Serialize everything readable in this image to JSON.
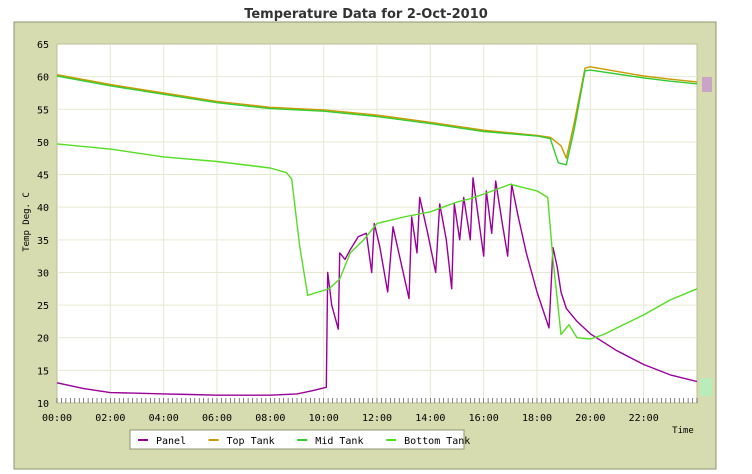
{
  "chart_data": {
    "type": "line",
    "title": "Temperature Data for 2-Oct-2010",
    "xlabel": "Time",
    "ylabel": "Temp Deg. C",
    "xlim": [
      0,
      24
    ],
    "ylim": [
      10,
      65
    ],
    "x_ticks": [
      {
        "v": 0,
        "label": "00:00"
      },
      {
        "v": 2,
        "label": "02:00"
      },
      {
        "v": 4,
        "label": "04:00"
      },
      {
        "v": 6,
        "label": "06:00"
      },
      {
        "v": 8,
        "label": "08:00"
      },
      {
        "v": 10,
        "label": "10:00"
      },
      {
        "v": 12,
        "label": "12:00"
      },
      {
        "v": 14,
        "label": "14:00"
      },
      {
        "v": 16,
        "label": "16:00"
      },
      {
        "v": 18,
        "label": "18:00"
      },
      {
        "v": 20,
        "label": "20:00"
      },
      {
        "v": 22,
        "label": "22:00"
      }
    ],
    "y_ticks": [
      10,
      15,
      20,
      25,
      30,
      35,
      40,
      45,
      50,
      55,
      60,
      65
    ],
    "grid": true,
    "legend_position": "bottom",
    "colors": {
      "page_bg": "#ffffff",
      "frame_bg": "#d6dcaf",
      "frame_border": "#8e9470",
      "plot_bg": "#ffffff",
      "grid": "#e6e9d2",
      "title": "#333333"
    },
    "series": [
      {
        "name": "Panel",
        "color": "#990099",
        "points": [
          [
            0,
            13.1
          ],
          [
            1,
            12.2
          ],
          [
            2,
            11.6
          ],
          [
            3,
            11.5
          ],
          [
            4,
            11.4
          ],
          [
            5,
            11.3
          ],
          [
            6,
            11.2
          ],
          [
            7,
            11.2
          ],
          [
            8,
            11.2
          ],
          [
            9,
            11.4
          ],
          [
            9.6,
            11.9
          ],
          [
            10.1,
            12.4
          ],
          [
            10.15,
            30
          ],
          [
            10.3,
            25
          ],
          [
            10.55,
            21.3
          ],
          [
            10.6,
            33
          ],
          [
            10.8,
            32
          ],
          [
            11,
            33.5
          ],
          [
            11.3,
            35.5
          ],
          [
            11.6,
            36
          ],
          [
            11.8,
            30
          ],
          [
            11.9,
            37.5
          ],
          [
            12.1,
            34
          ],
          [
            12.4,
            27
          ],
          [
            12.6,
            37
          ],
          [
            12.9,
            31.5
          ],
          [
            13.2,
            26
          ],
          [
            13.3,
            38.5
          ],
          [
            13.5,
            33
          ],
          [
            13.6,
            41.5
          ],
          [
            13.9,
            36
          ],
          [
            14.2,
            30
          ],
          [
            14.35,
            40.5
          ],
          [
            14.6,
            35
          ],
          [
            14.8,
            27.5
          ],
          [
            14.9,
            40.5
          ],
          [
            15.1,
            35
          ],
          [
            15.25,
            41.5
          ],
          [
            15.5,
            35
          ],
          [
            15.6,
            44.5
          ],
          [
            15.8,
            38.5
          ],
          [
            16,
            32.5
          ],
          [
            16.1,
            42.5
          ],
          [
            16.3,
            36
          ],
          [
            16.45,
            44
          ],
          [
            16.7,
            37.5
          ],
          [
            16.9,
            32.5
          ],
          [
            17.05,
            43.5
          ],
          [
            17.3,
            38.5
          ],
          [
            17.6,
            33
          ],
          [
            18,
            27
          ],
          [
            18.45,
            21.5
          ],
          [
            18.6,
            33.8
          ],
          [
            18.75,
            31
          ],
          [
            18.9,
            27
          ],
          [
            19.1,
            24.5
          ],
          [
            19.5,
            22.5
          ],
          [
            20,
            20.6
          ],
          [
            21,
            18
          ],
          [
            22,
            15.9
          ],
          [
            23,
            14.3
          ],
          [
            24,
            13.3
          ]
        ]
      },
      {
        "name": "Top Tank",
        "color": "#cc9900",
        "points": [
          [
            0,
            60.3
          ],
          [
            2,
            58.8
          ],
          [
            4,
            57.5
          ],
          [
            6,
            56.2
          ],
          [
            8,
            55.3
          ],
          [
            10,
            54.9
          ],
          [
            12,
            54.1
          ],
          [
            14,
            53
          ],
          [
            16,
            51.8
          ],
          [
            18,
            51
          ],
          [
            18.5,
            50.7
          ],
          [
            18.9,
            49.4
          ],
          [
            19.1,
            47.5
          ],
          [
            19.4,
            53
          ],
          [
            19.8,
            61.3
          ],
          [
            20,
            61.5
          ],
          [
            21,
            60.8
          ],
          [
            22,
            60.1
          ],
          [
            23,
            59.6
          ],
          [
            24,
            59.2
          ]
        ]
      },
      {
        "name": "Mid Tank",
        "color": "#33cc33",
        "points": [
          [
            0,
            60.1
          ],
          [
            2,
            58.6
          ],
          [
            4,
            57.3
          ],
          [
            6,
            56
          ],
          [
            8,
            55.1
          ],
          [
            10,
            54.7
          ],
          [
            12,
            53.9
          ],
          [
            14,
            52.8
          ],
          [
            16,
            51.6
          ],
          [
            18,
            50.9
          ],
          [
            18.5,
            50.5
          ],
          [
            18.8,
            46.8
          ],
          [
            19.1,
            46.5
          ],
          [
            19.4,
            52
          ],
          [
            19.8,
            60.9
          ],
          [
            20,
            61
          ],
          [
            21,
            60.4
          ],
          [
            22,
            59.8
          ],
          [
            23,
            59.3
          ],
          [
            24,
            58.9
          ]
        ]
      },
      {
        "name": "Bottom Tank",
        "color": "#55dd22",
        "points": [
          [
            0,
            49.7
          ],
          [
            2,
            48.9
          ],
          [
            4,
            47.7
          ],
          [
            6,
            47
          ],
          [
            8,
            46
          ],
          [
            8.6,
            45.3
          ],
          [
            8.8,
            44.3
          ],
          [
            9.1,
            34
          ],
          [
            9.4,
            26.5
          ],
          [
            9.8,
            27
          ],
          [
            10.2,
            27.5
          ],
          [
            10.6,
            29
          ],
          [
            11,
            33
          ],
          [
            11.5,
            35
          ],
          [
            12,
            37.5
          ],
          [
            13,
            38.5
          ],
          [
            14,
            39.3
          ],
          [
            15,
            40.8
          ],
          [
            15.5,
            41.3
          ],
          [
            16,
            42
          ],
          [
            17,
            43.5
          ],
          [
            18,
            42.5
          ],
          [
            18.4,
            41.5
          ],
          [
            18.6,
            32
          ],
          [
            18.9,
            20.5
          ],
          [
            19.2,
            22
          ],
          [
            19.5,
            20
          ],
          [
            20,
            19.8
          ],
          [
            20.5,
            20.5
          ],
          [
            21,
            21.5
          ],
          [
            22,
            23.5
          ],
          [
            23,
            25.8
          ],
          [
            24,
            27.5
          ]
        ]
      }
    ]
  }
}
